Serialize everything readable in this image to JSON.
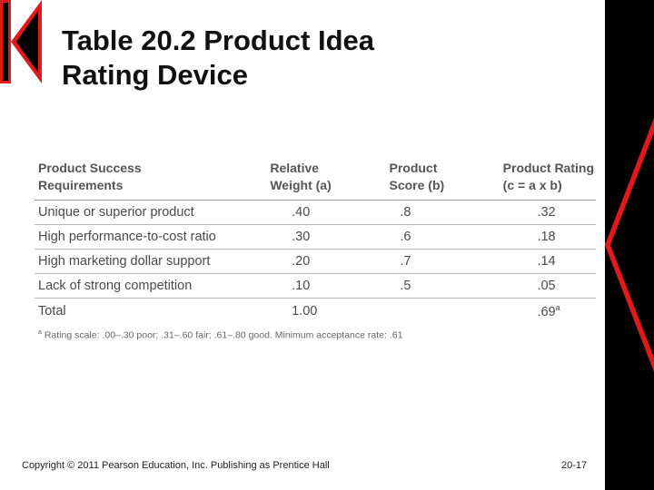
{
  "slide": {
    "title_line1": "Table 20.2 Product Idea",
    "title_line2": "Rating Device",
    "copyright": "Copyright © 2011 Pearson Education, Inc.  Publishing as Prentice Hall",
    "page_number": "20-17"
  },
  "table": {
    "headers": [
      "Product Success\nRequirements",
      "Relative\nWeight (a)",
      "Product\nScore (b)",
      "Product Rating\n(c = a x b)"
    ],
    "rows": [
      {
        "requirement": "Unique or superior product",
        "weight": ".40",
        "score": ".8",
        "rating": ".32"
      },
      {
        "requirement": "High performance-to-cost ratio",
        "weight": ".30",
        "score": ".6",
        "rating": ".18"
      },
      {
        "requirement": "High marketing dollar support",
        "weight": ".20",
        "score": ".7",
        "rating": ".14"
      },
      {
        "requirement": "Lack of strong competition",
        "weight": ".10",
        "score": ".5",
        "rating": ".05"
      }
    ],
    "total": {
      "label": "Total",
      "weight": "1.00",
      "rating": ".69",
      "rating_mark": "a"
    },
    "footnote": {
      "mark": "a",
      "text": "Rating scale: .00–.30 poor; .31–.60 fair; .61–.80 good. Minimum acceptance rate: .61"
    }
  },
  "colors": {
    "accent": "#e0191b",
    "band": "#000000"
  }
}
